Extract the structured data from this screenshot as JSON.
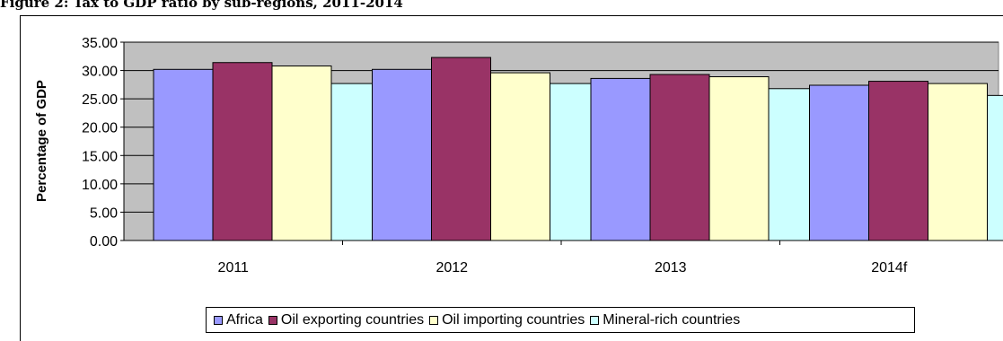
{
  "caption": {
    "text": "Figure 2: Tax to GDP ratio by sub-regions, 2011-2014"
  },
  "chart_data": {
    "type": "bar",
    "title": "",
    "xlabel": "",
    "ylabel": "Percentage of GDP",
    "ylim": [
      0,
      35
    ],
    "ytick_values": [
      0,
      5,
      10,
      15,
      20,
      25,
      30,
      35
    ],
    "ytick_labels": [
      "0.00",
      "5.00",
      "10.00",
      "15.00",
      "20.00",
      "25.00",
      "30.00",
      "35.00"
    ],
    "categories": [
      "2011",
      "2012",
      "2013",
      "2014f"
    ],
    "grid": true,
    "legend_position": "bottom",
    "plot_background": "#c0c0c0",
    "series": [
      {
        "name": "Africa",
        "color": "#9999ff",
        "values": [
          30.2,
          30.2,
          28.6,
          27.4
        ]
      },
      {
        "name": "Oil exporting countries",
        "color": "#993366",
        "values": [
          31.4,
          32.3,
          29.3,
          28.1
        ]
      },
      {
        "name": "Oil importing countries",
        "color": "#ffffcc",
        "values": [
          30.8,
          29.6,
          28.9,
          27.7
        ]
      },
      {
        "name": "Mineral-rich countries",
        "color": "#ccffff",
        "values": [
          27.7,
          27.7,
          26.8,
          25.6
        ]
      }
    ]
  }
}
